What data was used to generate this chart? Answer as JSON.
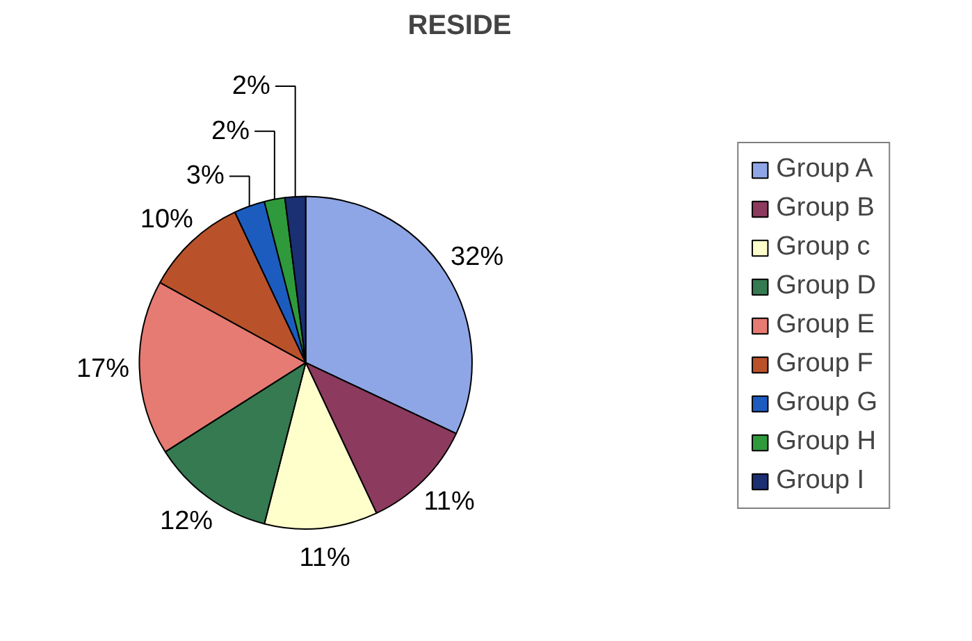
{
  "chart_data": {
    "type": "pie",
    "title": "RESIDE",
    "categories": [
      "Group A",
      "Group B",
      "Group c",
      "Group D",
      "Group E",
      "Group F",
      "Group G",
      "Group H",
      "Group I"
    ],
    "values": [
      32,
      11,
      11,
      12,
      17,
      10,
      3,
      2,
      2
    ],
    "colors": [
      "#8fa6e6",
      "#8c3a5e",
      "#ffffcc",
      "#357a50",
      "#e57b72",
      "#b9522a",
      "#1d5cbf",
      "#2f9a3c",
      "#1b2f73"
    ],
    "value_labels": [
      "32%",
      "11%",
      "11%",
      "12%",
      "17%",
      "10%",
      "3%",
      "2%",
      "2%"
    ],
    "legend": "right"
  }
}
